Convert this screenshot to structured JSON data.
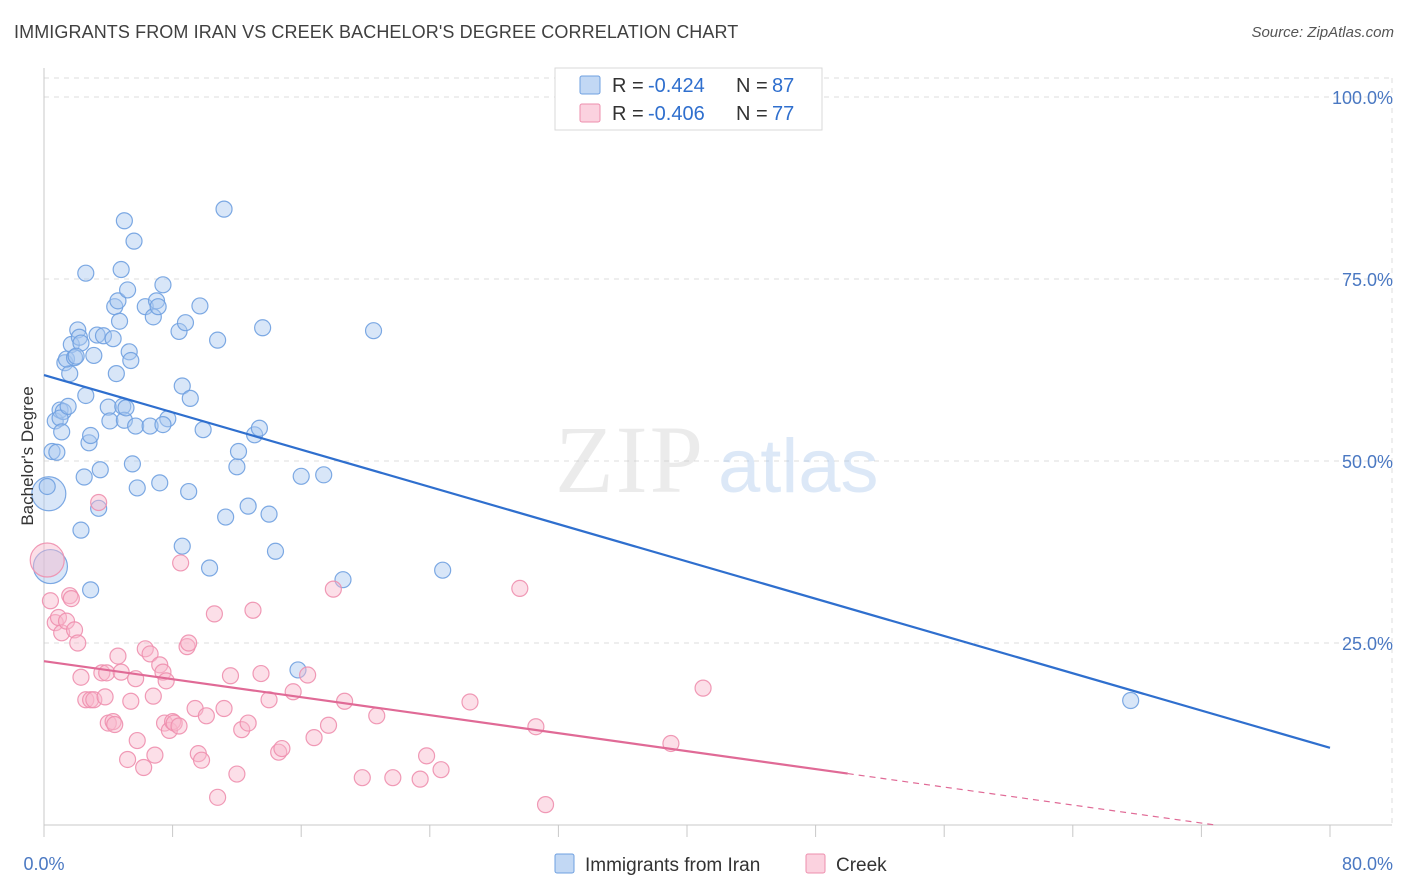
{
  "header": {
    "title": "IMMIGRANTS FROM IRAN VS CREEK BACHELOR'S DEGREE CORRELATION CHART",
    "source": "Source: ZipAtlas.com"
  },
  "watermark": {
    "zip": "ZIP",
    "atlas": "atlas"
  },
  "legend": {
    "rows": [
      {
        "r_label": "R =",
        "r_value": "-0.424",
        "n_label": "N =",
        "n_value": "87",
        "color": "#a8c8f0"
      },
      {
        "r_label": "R =",
        "r_value": "-0.406",
        "n_label": "N =",
        "n_value": "77",
        "color": "#f8b8cc"
      }
    ]
  },
  "chart_data": {
    "type": "scatter",
    "title": "IMMIGRANTS FROM IRAN VS CREEK BACHELOR'S DEGREE CORRELATION CHART",
    "xlabel": "",
    "ylabel": "Bachelor's Degree",
    "xlim": [
      0,
      80
    ],
    "ylim": [
      0,
      100
    ],
    "x_tick_labels": [
      "0.0%",
      "80.0%"
    ],
    "y_tick_labels": [
      "100.0%",
      "75.0%",
      "50.0%",
      "25.0%"
    ],
    "y_ticks": [
      100,
      75,
      50,
      25
    ],
    "grid": true,
    "legend_position": "top-center",
    "series": [
      {
        "name": "Immigrants from Iran",
        "color": "#6fa0e0",
        "fill": "#a8c8f0",
        "line_color": "#2f6fce",
        "trend": {
          "x": [
            0,
            80
          ],
          "y": [
            61.8,
            10.6
          ],
          "solid_until": 80
        },
        "points": [
          [
            0.3,
            45.5
          ],
          [
            0.2,
            46.5
          ],
          [
            0.5,
            51.3
          ],
          [
            0.8,
            51.2
          ],
          [
            0.7,
            55.5
          ],
          [
            1.0,
            57.0
          ],
          [
            1.2,
            56.8
          ],
          [
            1.0,
            55.9
          ],
          [
            1.1,
            54.0
          ],
          [
            1.5,
            57.5
          ],
          [
            1.3,
            63.5
          ],
          [
            1.6,
            62.0
          ],
          [
            1.4,
            64.0
          ],
          [
            1.7,
            66.0
          ],
          [
            1.9,
            64.2
          ],
          [
            2.1,
            68.0
          ],
          [
            2.2,
            67.0
          ],
          [
            2.3,
            66.2
          ],
          [
            2.0,
            64.4
          ],
          [
            2.6,
            59.0
          ],
          [
            2.5,
            47.8
          ],
          [
            2.8,
            52.5
          ],
          [
            2.9,
            53.5
          ],
          [
            3.1,
            64.5
          ],
          [
            3.3,
            67.3
          ],
          [
            3.4,
            43.5
          ],
          [
            3.5,
            48.8
          ],
          [
            2.6,
            75.8
          ],
          [
            3.7,
            67.2
          ],
          [
            4.0,
            57.4
          ],
          [
            4.1,
            55.5
          ],
          [
            4.3,
            66.8
          ],
          [
            4.4,
            71.2
          ],
          [
            4.6,
            72.0
          ],
          [
            4.5,
            62.0
          ],
          [
            4.7,
            69.2
          ],
          [
            4.8,
            76.3
          ],
          [
            4.9,
            57.5
          ],
          [
            5.0,
            55.6
          ],
          [
            5.1,
            57.3
          ],
          [
            5.2,
            73.5
          ],
          [
            5.0,
            83.0
          ],
          [
            5.3,
            65.0
          ],
          [
            5.4,
            63.8
          ],
          [
            5.5,
            49.6
          ],
          [
            5.6,
            80.2
          ],
          [
            5.7,
            54.8
          ],
          [
            5.8,
            46.3
          ],
          [
            6.3,
            71.2
          ],
          [
            6.6,
            54.8
          ],
          [
            6.8,
            69.8
          ],
          [
            7.0,
            72.0
          ],
          [
            7.1,
            71.2
          ],
          [
            7.2,
            47.0
          ],
          [
            7.4,
            74.2
          ],
          [
            7.7,
            55.8
          ],
          [
            7.4,
            55.0
          ],
          [
            8.6,
            38.3
          ],
          [
            8.4,
            67.8
          ],
          [
            8.8,
            69.0
          ],
          [
            9.0,
            45.8
          ],
          [
            8.6,
            60.3
          ],
          [
            9.1,
            58.6
          ],
          [
            9.7,
            71.3
          ],
          [
            9.9,
            54.3
          ],
          [
            10.3,
            35.3
          ],
          [
            10.8,
            66.6
          ],
          [
            11.3,
            42.3
          ],
          [
            12.0,
            49.2
          ],
          [
            12.1,
            51.3
          ],
          [
            12.7,
            43.8
          ],
          [
            13.1,
            53.6
          ],
          [
            13.4,
            54.5
          ],
          [
            13.6,
            68.3
          ],
          [
            11.2,
            84.6
          ],
          [
            14.0,
            42.7
          ],
          [
            14.4,
            37.6
          ],
          [
            15.8,
            21.3
          ],
          [
            16.0,
            47.9
          ],
          [
            17.4,
            48.1
          ],
          [
            18.6,
            33.7
          ],
          [
            20.5,
            67.9
          ],
          [
            24.8,
            35.0
          ],
          [
            67.6,
            17.1
          ],
          [
            0.4,
            35.5
          ],
          [
            2.3,
            40.5
          ],
          [
            2.9,
            32.3
          ]
        ],
        "sizes": {
          "big": [
            [
              0.3,
              45.5
            ],
            [
              0.4,
              35.5
            ]
          ]
        }
      },
      {
        "name": "Creek",
        "color": "#ee8fae",
        "fill": "#f8b8cc",
        "line_color": "#e06a96",
        "trend": {
          "x": [
            0,
            80
          ],
          "y": [
            22.5,
            -2.2
          ],
          "solid_until": 50
        },
        "points": [
          [
            0.2,
            36.4
          ],
          [
            0.4,
            30.8
          ],
          [
            0.7,
            27.8
          ],
          [
            0.9,
            28.5
          ],
          [
            1.1,
            26.4
          ],
          [
            1.4,
            28.0
          ],
          [
            1.6,
            31.5
          ],
          [
            1.7,
            31.1
          ],
          [
            1.9,
            26.8
          ],
          [
            2.1,
            25.0
          ],
          [
            2.3,
            20.3
          ],
          [
            2.6,
            17.2
          ],
          [
            2.9,
            17.2
          ],
          [
            3.1,
            17.2
          ],
          [
            3.4,
            44.3
          ],
          [
            3.6,
            20.9
          ],
          [
            3.9,
            20.9
          ],
          [
            3.8,
            17.6
          ],
          [
            4.0,
            14.0
          ],
          [
            4.3,
            14.2
          ],
          [
            4.4,
            13.8
          ],
          [
            4.6,
            23.2
          ],
          [
            4.8,
            21.0
          ],
          [
            5.2,
            9.0
          ],
          [
            5.4,
            17.0
          ],
          [
            5.7,
            20.1
          ],
          [
            5.8,
            11.6
          ],
          [
            6.2,
            7.9
          ],
          [
            6.3,
            24.2
          ],
          [
            6.6,
            23.5
          ],
          [
            6.8,
            17.7
          ],
          [
            6.9,
            9.6
          ],
          [
            7.2,
            22.0
          ],
          [
            7.4,
            21.0
          ],
          [
            7.5,
            14.0
          ],
          [
            7.6,
            19.8
          ],
          [
            7.8,
            13.0
          ],
          [
            8.0,
            14.2
          ],
          [
            8.1,
            14.0
          ],
          [
            8.4,
            13.6
          ],
          [
            8.5,
            36.0
          ],
          [
            8.9,
            24.5
          ],
          [
            9.0,
            25.0
          ],
          [
            9.4,
            16.0
          ],
          [
            9.6,
            9.8
          ],
          [
            9.8,
            8.9
          ],
          [
            10.1,
            15.0
          ],
          [
            10.6,
            29.0
          ],
          [
            10.8,
            3.8
          ],
          [
            11.2,
            16.0
          ],
          [
            11.6,
            20.5
          ],
          [
            12.0,
            7.0
          ],
          [
            12.3,
            13.1
          ],
          [
            12.7,
            14.0
          ],
          [
            13.0,
            29.5
          ],
          [
            13.5,
            20.8
          ],
          [
            14.0,
            17.2
          ],
          [
            14.6,
            10.0
          ],
          [
            14.8,
            10.5
          ],
          [
            15.5,
            18.3
          ],
          [
            16.4,
            20.6
          ],
          [
            16.8,
            12.0
          ],
          [
            17.7,
            13.7
          ],
          [
            18.0,
            32.4
          ],
          [
            18.7,
            17.0
          ],
          [
            19.8,
            6.5
          ],
          [
            20.7,
            15.0
          ],
          [
            21.7,
            6.5
          ],
          [
            23.4,
            6.3
          ],
          [
            23.8,
            9.5
          ],
          [
            24.7,
            7.6
          ],
          [
            26.5,
            16.9
          ],
          [
            29.6,
            32.5
          ],
          [
            30.6,
            13.5
          ],
          [
            31.2,
            2.8
          ],
          [
            39.0,
            11.2
          ],
          [
            41.0,
            18.8
          ]
        ],
        "sizes": {
          "big": [
            [
              0.2,
              36.4
            ]
          ]
        }
      }
    ]
  },
  "bottom_legend": [
    {
      "label": "Immigrants from Iran",
      "color": "#a8c8f0"
    },
    {
      "label": "Creek",
      "color": "#f8b8cc"
    }
  ]
}
